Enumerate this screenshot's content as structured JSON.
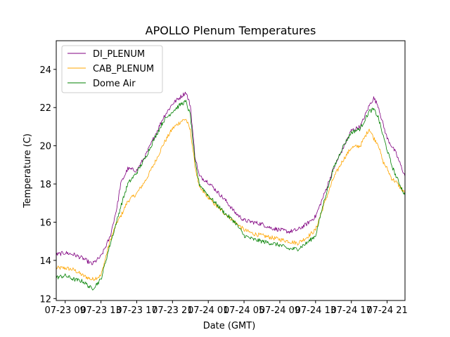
{
  "chart_data": {
    "type": "line",
    "title": "APOLLO Plenum Temperatures",
    "xlabel": "Date (GMT)",
    "ylabel": "Temperature (C)",
    "xlim": [
      0,
      39
    ],
    "ylim": [
      11.9,
      25.5
    ],
    "x_unit": "hours since 07-23 08:00 GMT",
    "xticks": [
      {
        "value": 1,
        "label": "07-23 09"
      },
      {
        "value": 5,
        "label": "07-23 13"
      },
      {
        "value": 9,
        "label": "07-23 17"
      },
      {
        "value": 13,
        "label": "07-23 21"
      },
      {
        "value": 17,
        "label": "07-24 01"
      },
      {
        "value": 21,
        "label": "07-24 05"
      },
      {
        "value": 25,
        "label": "07-24 09"
      },
      {
        "value": 29,
        "label": "07-24 13"
      },
      {
        "value": 33,
        "label": "07-24 17"
      },
      {
        "value": 37,
        "label": "07-24 21"
      }
    ],
    "yticks": [
      12,
      14,
      16,
      18,
      20,
      22,
      24
    ],
    "legend_position": "upper-left",
    "x": [
      0,
      1,
      2,
      3,
      4,
      5,
      6,
      6.8,
      7.2,
      8,
      9,
      10,
      11,
      12,
      13,
      14,
      14.5,
      15,
      15.5,
      16,
      17,
      18,
      19,
      20,
      21,
      22,
      23,
      24,
      25,
      26,
      27,
      28,
      29,
      30,
      31,
      32,
      33,
      34,
      35,
      35.5,
      36,
      36.5,
      37,
      37.5,
      38,
      39
    ],
    "series": [
      {
        "name": "DI_PLENUM",
        "color": "#800080",
        "values": [
          14.3,
          14.4,
          14.3,
          14.1,
          13.8,
          14.2,
          15.2,
          16.8,
          18.0,
          18.8,
          18.7,
          19.5,
          20.5,
          21.5,
          22.2,
          22.6,
          22.8,
          22.1,
          19.5,
          18.4,
          18.1,
          17.6,
          17.1,
          16.5,
          16.1,
          16.0,
          15.9,
          15.7,
          15.6,
          15.5,
          15.6,
          15.9,
          16.3,
          17.5,
          18.8,
          19.8,
          20.8,
          21.0,
          22.1,
          22.5,
          22.1,
          21.2,
          20.4,
          20.0,
          19.6,
          18.4
        ]
      },
      {
        "name": "CAB_PLENUM",
        "color": "#ffa500",
        "values": [
          13.6,
          13.6,
          13.5,
          13.2,
          13.0,
          13.2,
          15.0,
          16.0,
          16.3,
          17.1,
          17.5,
          18.2,
          19.1,
          20.1,
          20.9,
          21.3,
          21.4,
          20.8,
          19.0,
          17.8,
          17.3,
          16.8,
          16.4,
          16.0,
          15.6,
          15.4,
          15.3,
          15.2,
          15.1,
          15.0,
          14.9,
          15.2,
          15.6,
          17.0,
          18.3,
          19.2,
          19.9,
          20.0,
          20.9,
          20.4,
          20.1,
          19.2,
          18.8,
          18.3,
          18.1,
          17.5
        ]
      },
      {
        "name": "Dome Air",
        "color": "#008000",
        "values": [
          13.1,
          13.2,
          13.0,
          12.9,
          12.5,
          13.0,
          14.8,
          16.1,
          16.8,
          18.0,
          18.6,
          19.4,
          20.4,
          21.3,
          21.8,
          22.2,
          22.3,
          21.6,
          19.2,
          18.0,
          17.4,
          16.9,
          16.4,
          16.0,
          15.3,
          15.1,
          15.0,
          14.9,
          14.8,
          14.6,
          14.6,
          14.9,
          15.3,
          17.2,
          18.8,
          19.9,
          20.7,
          20.9,
          21.8,
          21.9,
          21.5,
          20.6,
          19.8,
          19.0,
          18.4,
          17.4
        ]
      }
    ]
  }
}
